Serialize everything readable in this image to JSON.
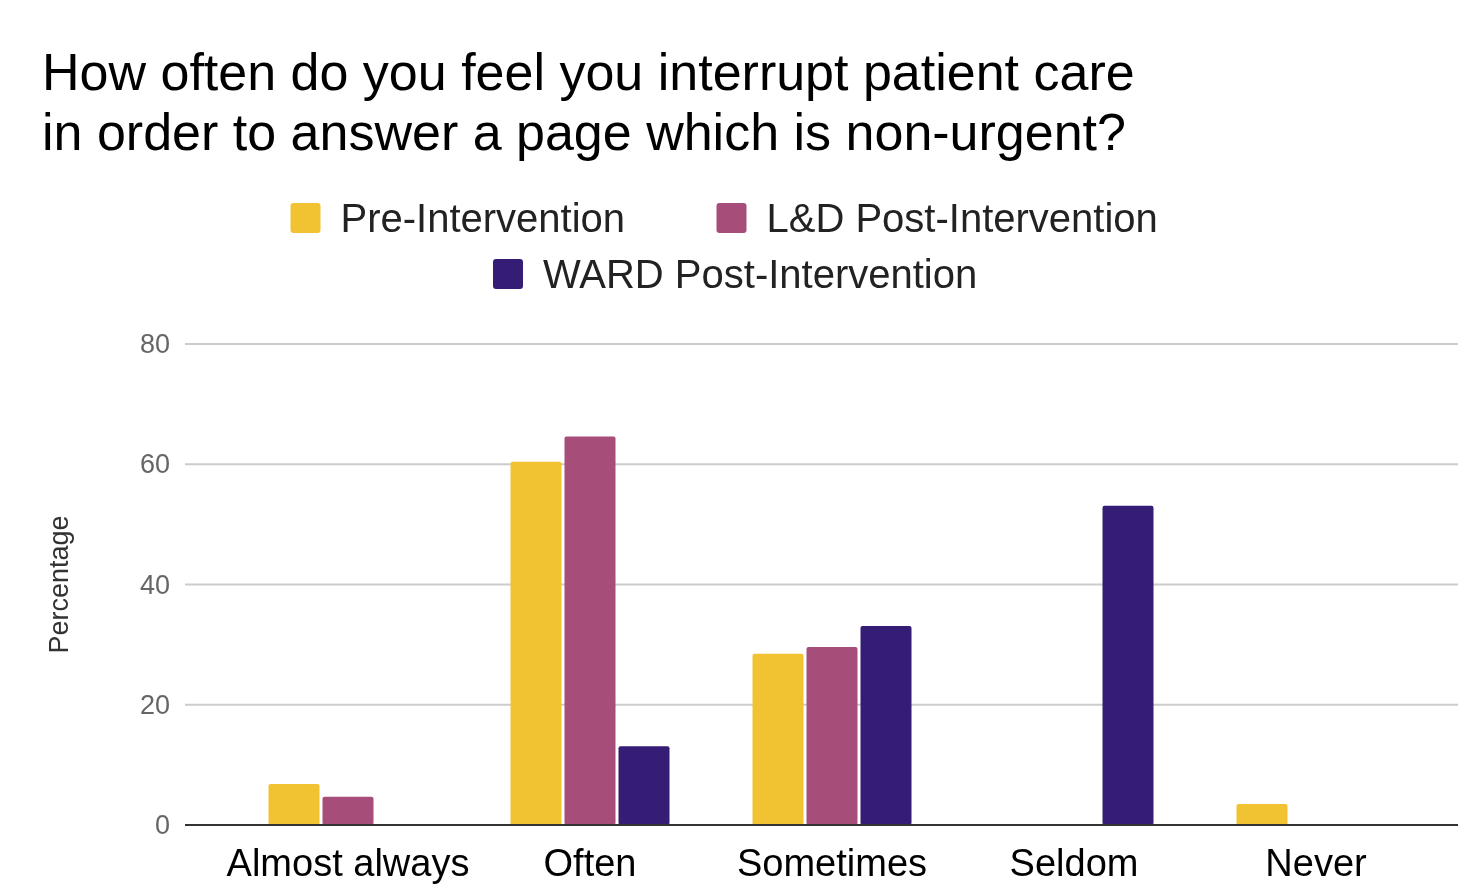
{
  "chart_data": {
    "type": "bar",
    "title": "How often do you feel you interrupt patient care in order to answer a page which is non-urgent?",
    "ylabel": "Percentage",
    "categories": [
      "Almost always",
      "Often",
      "Sometimes",
      "Seldom",
      "Never"
    ],
    "series": [
      {
        "name": "Pre-Intervention",
        "color": "#f1c232",
        "values": [
          6.8,
          60.4,
          28.5,
          0,
          3.5
        ]
      },
      {
        "name": "L&D Post-Intervention",
        "color": "#a64d79",
        "values": [
          4.7,
          64.6,
          29.6,
          0,
          0
        ]
      },
      {
        "name": "WARD Post-Intervention",
        "color": "#351c75",
        "values": [
          0,
          13.1,
          33.1,
          53.1,
          0
        ]
      }
    ],
    "ylim": [
      0,
      80
    ],
    "yticks": [
      0,
      20,
      40,
      60,
      80
    ],
    "grid": "y",
    "legend": "top"
  }
}
